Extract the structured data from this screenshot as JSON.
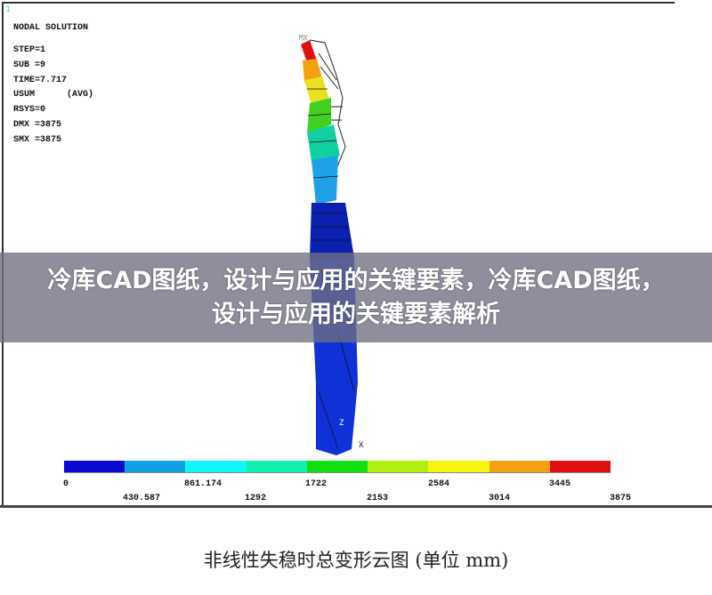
{
  "plot": {
    "window_number": "1",
    "title": "NODAL SOLUTION",
    "info_lines": [
      "STEP=1",
      "SUB =9",
      "TIME=7.717",
      "USUM      (AVG)",
      "RSYS=0",
      "DMX =3875",
      "SMX =3875"
    ],
    "max_marker": "MX",
    "axis_z": "Z",
    "axis_x": "X"
  },
  "legend": {
    "colors": [
      "#0a0ad2",
      "#0fa0e6",
      "#10f5f5",
      "#10f0b0",
      "#10e010",
      "#b0f010",
      "#f5f510",
      "#f5a010",
      "#e01010"
    ],
    "ticks_top": [
      "0",
      "861.174",
      "1722",
      "2584",
      "3445"
    ],
    "ticks_bottom": [
      "430.587",
      "1292",
      "2153",
      "3014",
      "3875"
    ]
  },
  "banner": {
    "text": "冷库CAD图纸，设计与应用的关键要素，冷库CAD图纸，设计与应用的关键要素解析"
  },
  "caption": "非线性失稳时总变形云图 (单位 mm)"
}
